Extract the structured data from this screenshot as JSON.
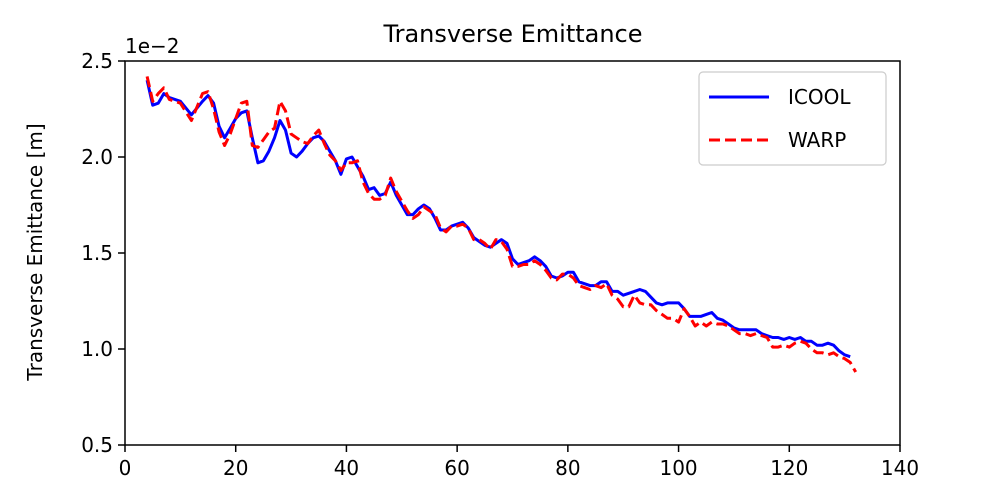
{
  "chart_data": {
    "type": "line",
    "title": "Transverse Emittance",
    "xlabel": "",
    "ylabel": "Transverse Emittance [m]",
    "y_scale_label": "1e−2",
    "xlim": [
      0,
      140
    ],
    "ylim": [
      0.005,
      0.025
    ],
    "x_ticks": [
      0,
      20,
      40,
      60,
      80,
      100,
      120,
      140
    ],
    "x_tick_labels": [
      "0",
      "20",
      "40",
      "60",
      "80",
      "100",
      "120",
      "140"
    ],
    "y_ticks": [
      0.005,
      0.01,
      0.015,
      0.02,
      0.025
    ],
    "y_tick_labels": [
      "0.5",
      "1.0",
      "1.5",
      "2.0",
      "2.5"
    ],
    "grid": false,
    "legend_position": "top-right",
    "series": [
      {
        "name": "ICOOL",
        "color": "#0000ff",
        "style": "solid",
        "x": [
          4,
          5,
          6,
          7,
          8,
          10,
          12,
          14,
          15,
          16,
          17,
          18,
          19,
          20,
          21,
          22,
          23,
          24,
          25,
          26,
          27,
          28,
          29,
          30,
          31,
          32,
          33,
          34,
          35,
          36,
          37,
          38,
          39,
          40,
          41,
          42,
          43,
          44,
          45,
          46,
          47,
          48,
          49,
          50,
          51,
          52,
          53,
          54,
          55,
          56,
          57,
          58,
          59,
          60,
          61,
          62,
          63,
          64,
          65,
          66,
          67,
          68,
          69,
          70,
          71,
          72,
          73,
          74,
          75,
          76,
          77,
          78,
          79,
          80,
          81,
          82,
          83,
          84,
          85,
          86,
          87,
          88,
          89,
          90,
          91,
          92,
          93,
          94,
          95,
          96,
          97,
          98,
          99,
          100,
          101,
          102,
          103,
          104,
          105,
          106,
          107,
          108,
          109,
          110,
          111,
          112,
          113,
          114,
          115,
          116,
          117,
          118,
          119,
          120,
          121,
          122,
          123,
          124,
          125,
          126,
          127,
          128,
          129,
          130,
          131
        ],
        "y": [
          0.024,
          0.0227,
          0.0228,
          0.0233,
          0.0231,
          0.0229,
          0.0222,
          0.0229,
          0.0232,
          0.0228,
          0.0216,
          0.021,
          0.0215,
          0.022,
          0.0223,
          0.0224,
          0.021,
          0.0197,
          0.0198,
          0.0203,
          0.021,
          0.0219,
          0.0214,
          0.0202,
          0.02,
          0.0203,
          0.0207,
          0.021,
          0.0211,
          0.0208,
          0.0203,
          0.0198,
          0.0191,
          0.0199,
          0.02,
          0.0195,
          0.019,
          0.0183,
          0.0184,
          0.018,
          0.0181,
          0.0187,
          0.018,
          0.0175,
          0.017,
          0.017,
          0.0173,
          0.0175,
          0.0173,
          0.0168,
          0.0162,
          0.0162,
          0.0164,
          0.0165,
          0.0166,
          0.0163,
          0.0158,
          0.0156,
          0.0154,
          0.0153,
          0.0155,
          0.0157,
          0.0155,
          0.0147,
          0.0144,
          0.0145,
          0.0146,
          0.0148,
          0.0146,
          0.0143,
          0.0138,
          0.0137,
          0.0138,
          0.014,
          0.014,
          0.0135,
          0.0134,
          0.0133,
          0.0133,
          0.0135,
          0.0135,
          0.013,
          0.013,
          0.0128,
          0.0129,
          0.013,
          0.0131,
          0.013,
          0.0127,
          0.0124,
          0.0123,
          0.0124,
          0.0124,
          0.0124,
          0.0121,
          0.0117,
          0.0117,
          0.0117,
          0.0118,
          0.0119,
          0.0116,
          0.0115,
          0.0113,
          0.0111,
          0.011,
          0.011,
          0.011,
          0.011,
          0.0108,
          0.0107,
          0.0106,
          0.0106,
          0.0105,
          0.0106,
          0.0105,
          0.0106,
          0.0104,
          0.0104,
          0.0102,
          0.0102,
          0.0103,
          0.0102,
          0.0099,
          0.0097,
          0.0096
        ]
      },
      {
        "name": "WARP",
        "color": "#ff0000",
        "style": "dashed",
        "x": [
          4,
          5,
          6,
          7,
          8,
          10,
          12,
          14,
          15,
          16,
          17,
          18,
          19,
          20,
          21,
          22,
          23,
          24,
          25,
          26,
          27,
          28,
          29,
          30,
          31,
          32,
          33,
          34,
          35,
          36,
          37,
          38,
          39,
          40,
          41,
          42,
          43,
          44,
          45,
          46,
          47,
          48,
          49,
          50,
          51,
          52,
          53,
          54,
          55,
          56,
          57,
          58,
          59,
          60,
          61,
          62,
          63,
          64,
          65,
          66,
          67,
          68,
          69,
          70,
          71,
          72,
          73,
          74,
          75,
          76,
          77,
          78,
          79,
          80,
          81,
          82,
          83,
          84,
          85,
          86,
          87,
          88,
          89,
          90,
          91,
          92,
          93,
          94,
          95,
          96,
          97,
          98,
          99,
          100,
          101,
          102,
          103,
          104,
          105,
          106,
          107,
          108,
          109,
          110,
          111,
          112,
          113,
          114,
          115,
          116,
          117,
          118,
          119,
          120,
          121,
          122,
          123,
          124,
          125,
          126,
          127,
          128,
          129,
          130,
          131,
          132
        ],
        "y": [
          0.0242,
          0.0229,
          0.0233,
          0.0236,
          0.023,
          0.0228,
          0.0219,
          0.0233,
          0.0234,
          0.0225,
          0.0213,
          0.0206,
          0.0212,
          0.022,
          0.0228,
          0.0229,
          0.0206,
          0.0205,
          0.0209,
          0.0213,
          0.0215,
          0.0229,
          0.0224,
          0.0212,
          0.021,
          0.0208,
          0.0207,
          0.0211,
          0.0214,
          0.0207,
          0.0201,
          0.0198,
          0.0193,
          0.0197,
          0.0197,
          0.0198,
          0.0187,
          0.0181,
          0.0178,
          0.0178,
          0.018,
          0.0189,
          0.0182,
          0.0177,
          0.0172,
          0.0168,
          0.017,
          0.0174,
          0.0172,
          0.017,
          0.0163,
          0.0161,
          0.0164,
          0.0164,
          0.0165,
          0.0163,
          0.0157,
          0.0157,
          0.0155,
          0.0152,
          0.0157,
          0.0156,
          0.0152,
          0.0143,
          0.0143,
          0.0144,
          0.0144,
          0.0146,
          0.0144,
          0.0141,
          0.0137,
          0.0136,
          0.0139,
          0.0139,
          0.0137,
          0.0133,
          0.0132,
          0.0131,
          0.0133,
          0.0132,
          0.0134,
          0.0128,
          0.0126,
          0.0122,
          0.0122,
          0.0128,
          0.0124,
          0.0123,
          0.0123,
          0.012,
          0.0118,
          0.0116,
          0.0116,
          0.0114,
          0.0121,
          0.0117,
          0.0112,
          0.0114,
          0.0112,
          0.0114,
          0.0113,
          0.0113,
          0.0112,
          0.011,
          0.0108,
          0.0108,
          0.0107,
          0.0108,
          0.0107,
          0.0106,
          0.0101,
          0.0101,
          0.0102,
          0.0101,
          0.0103,
          0.0104,
          0.0103,
          0.01,
          0.0098,
          0.0098,
          0.0097,
          0.0098,
          0.0096,
          0.0095,
          0.0093,
          0.0088
        ]
      }
    ]
  }
}
